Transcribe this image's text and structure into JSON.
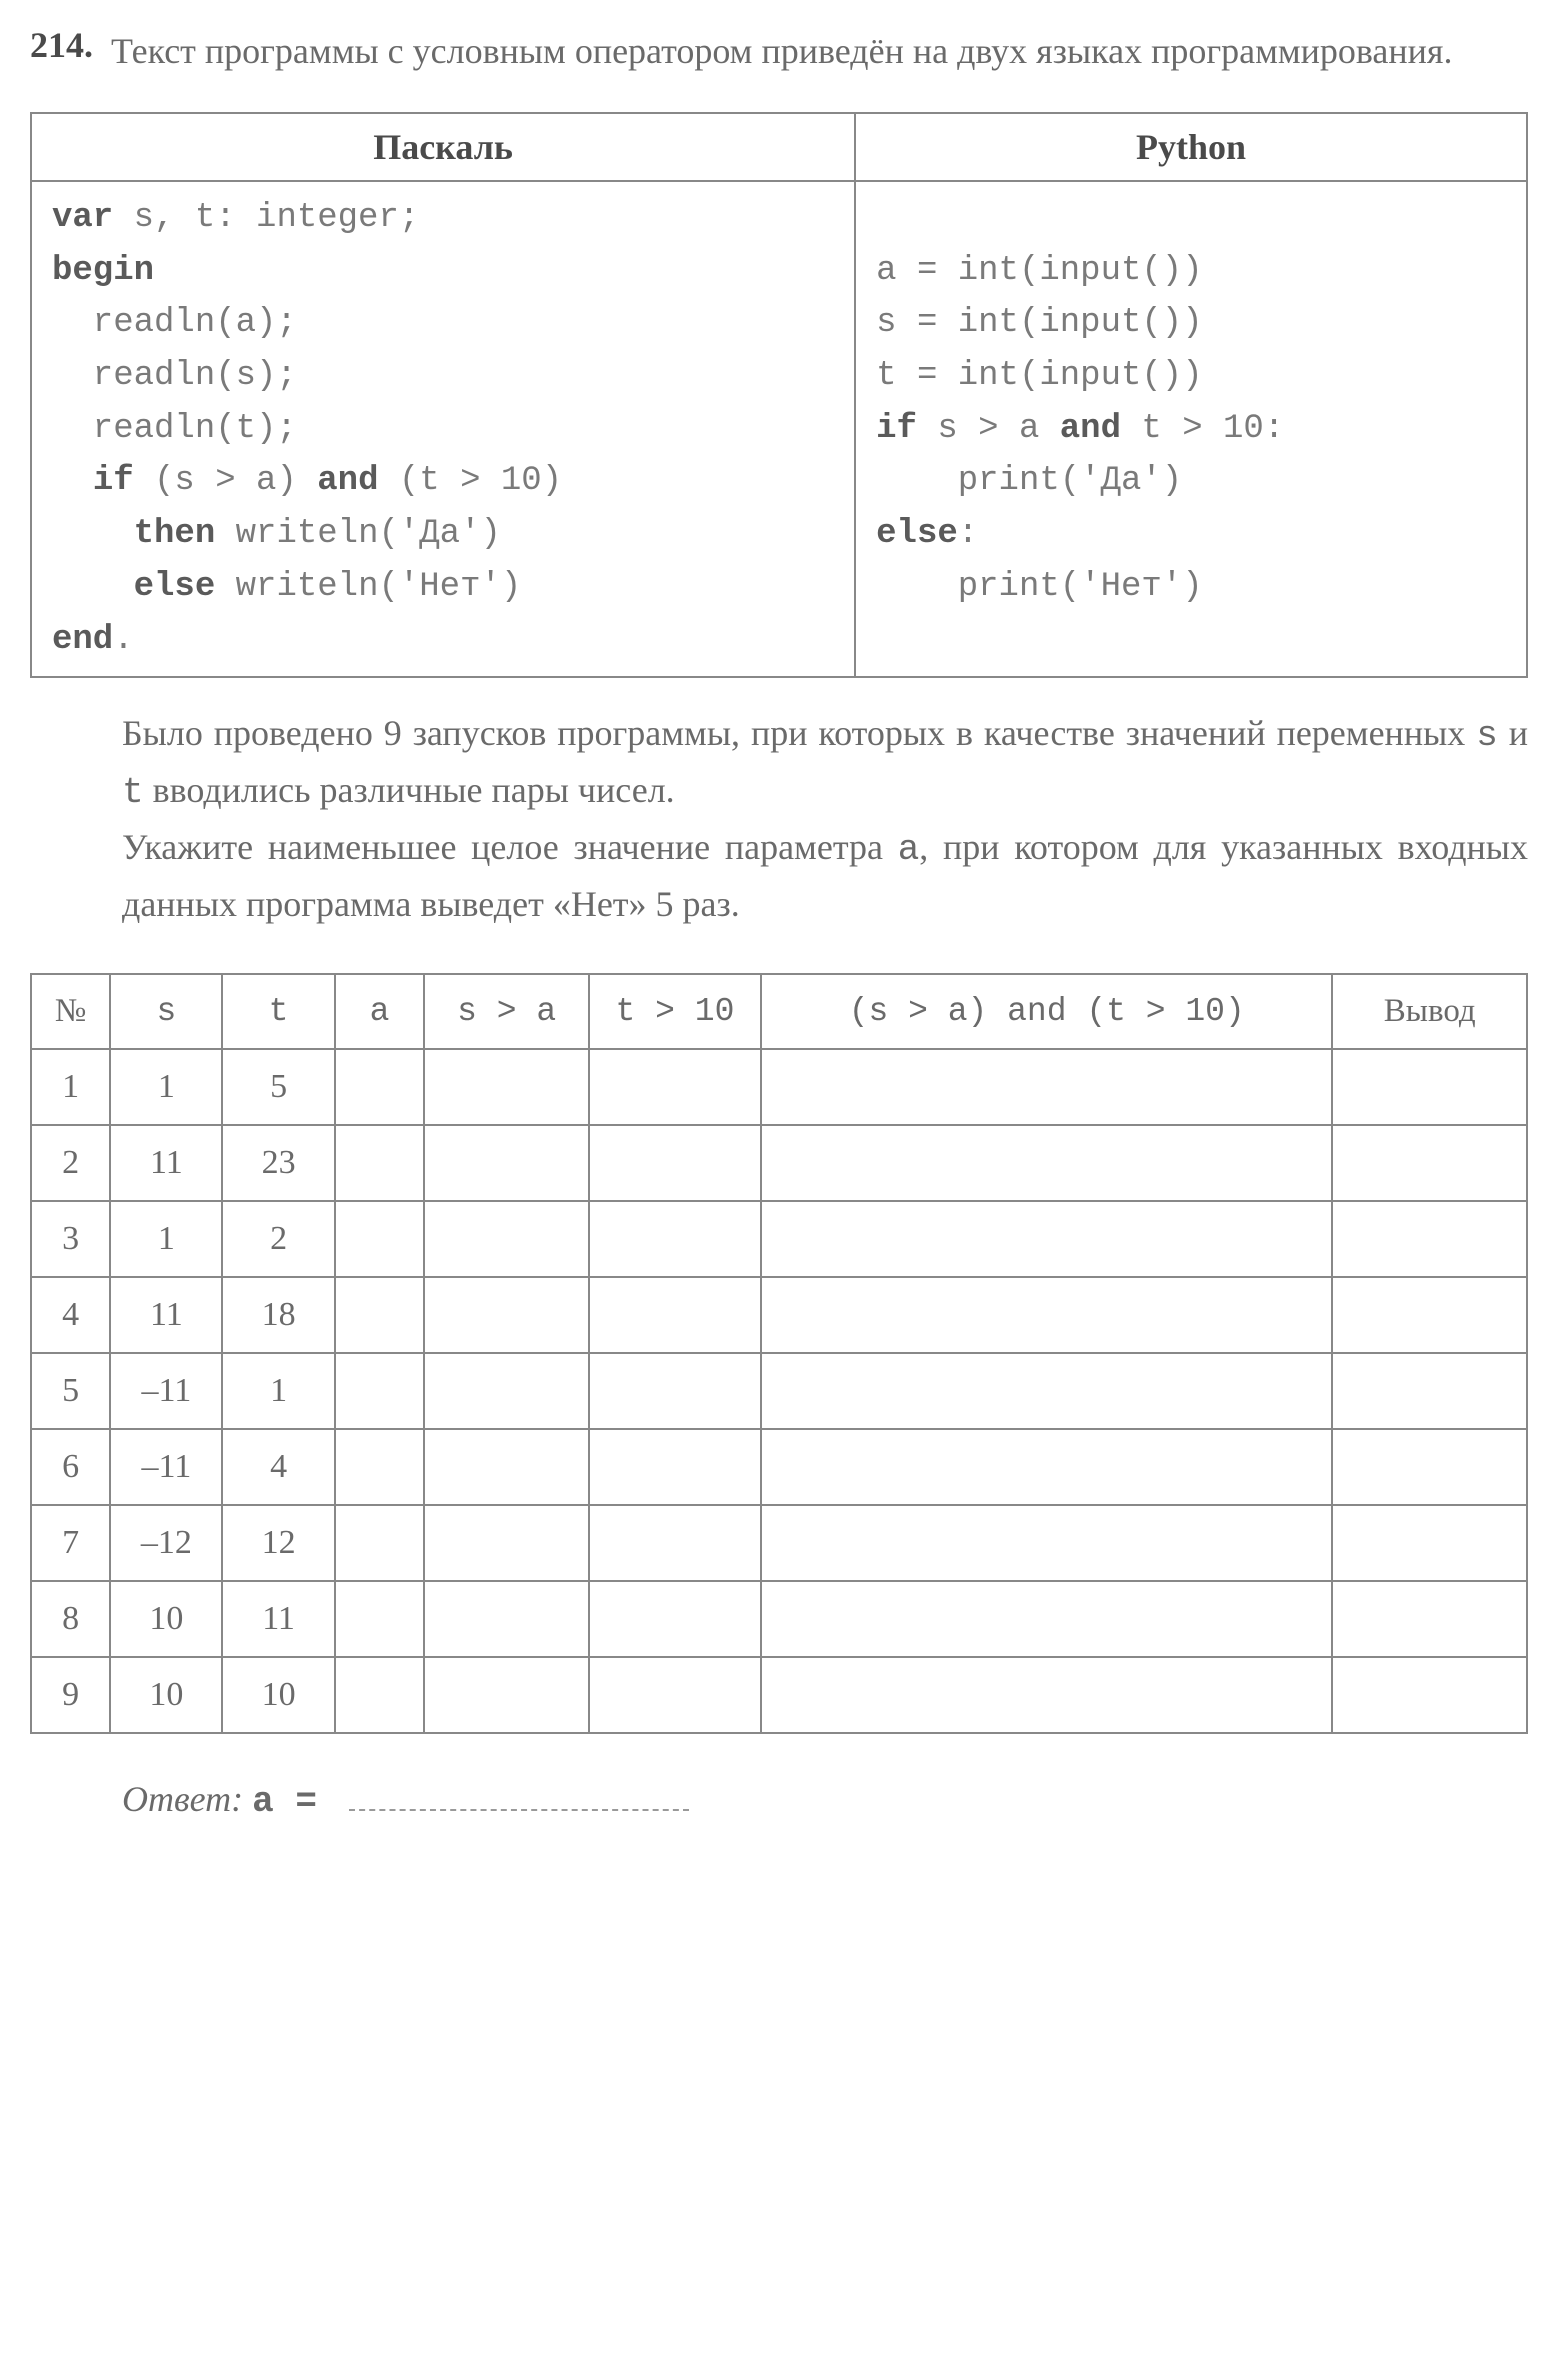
{
  "problem": {
    "number": "214.",
    "statement": "Текст программы с условным оператором приведён на двух языках программирования."
  },
  "code_table": {
    "headers": {
      "pascal": "Паскаль",
      "python": "Python"
    },
    "pascal": {
      "l1_kw": "var",
      "l1_rest": " s, t: integer;",
      "l2_kw": "begin",
      "l3": "  readln(a);",
      "l4": "  readln(s);",
      "l5": "  readln(t);",
      "l6a": "  ",
      "l6_if": "if",
      "l6b": " (s > a) ",
      "l6_and": "and",
      "l6c": " (t > 10)",
      "l7a": "    ",
      "l7_then": "then",
      "l7b": " writeln('Да')",
      "l8a": "    ",
      "l8_else": "else",
      "l8b": " writeln('Нет')",
      "l9_kw": "end",
      "l9_rest": "."
    },
    "python": {
      "l1": "a = int(input())",
      "l2": "s = int(input())",
      "l3": "t = int(input())",
      "l4_if": "if",
      "l4a": " s > a ",
      "l4_and": "and",
      "l4b": " t > 10:",
      "l5": "    print('Да')",
      "l6_else": "else",
      "l6a": ":",
      "l7": "    print('Нет')"
    }
  },
  "body": {
    "p1a": "Было проведено 9 запусков программы, при которых в качестве значений переменных ",
    "p1s": "s",
    "p1b": " и ",
    "p1t": "t",
    "p1c": " вводились различные пары чисел.",
    "p2a": "Укажите наименьшее целое значение параметра ",
    "p2var": "a",
    "p2b": ", при котором для указанных входных данных программа выведет «Нет» 5 раз."
  },
  "data_table": {
    "columns": {
      "n": "№",
      "s": "s",
      "t": "t",
      "a": "a",
      "sa": "s > a",
      "t10": "t > 10",
      "and": "(s > a) and (t > 10)",
      "out": "Вывод"
    },
    "rows": [
      {
        "n": "1",
        "s": "1",
        "t": "5"
      },
      {
        "n": "2",
        "s": "11",
        "t": "23"
      },
      {
        "n": "3",
        "s": "1",
        "t": "2"
      },
      {
        "n": "4",
        "s": "11",
        "t": "18"
      },
      {
        "n": "5",
        "s": "–11",
        "t": "1"
      },
      {
        "n": "6",
        "s": "–11",
        "t": "4"
      },
      {
        "n": "7",
        "s": "–12",
        "t": "12"
      },
      {
        "n": "8",
        "s": "10",
        "t": "11"
      },
      {
        "n": "9",
        "s": "10",
        "t": "10"
      }
    ]
  },
  "answer": {
    "label": "Ответ:",
    "var": "a",
    "eq": " = "
  },
  "styles": {
    "body_font_size_pt": 27,
    "code_font_size_pt": 25,
    "text_color": "#6a6a6a",
    "bold_color": "#4a4a4a",
    "border_color": "#888888",
    "background_color": "#ffffff"
  }
}
